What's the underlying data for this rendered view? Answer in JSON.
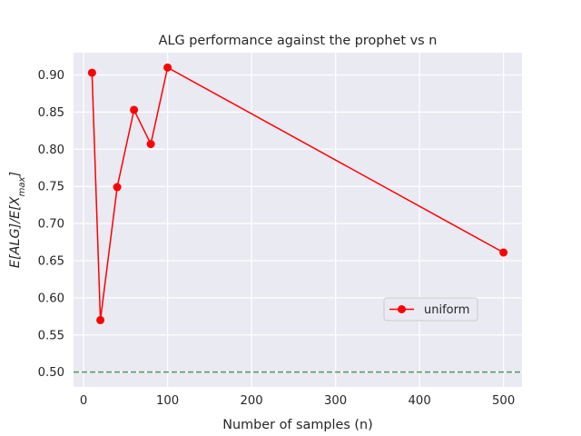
{
  "chart_data": {
    "type": "line",
    "title": "ALG performance against the prophet vs n",
    "xlabel": "Number of samples (n)",
    "ylabel": "E[ALG]/E[X_max]",
    "xlim": [
      -12,
      522
    ],
    "ylim": [
      0.48,
      0.93
    ],
    "xticks": [
      0,
      100,
      200,
      300,
      400,
      500
    ],
    "yticks": [
      0.5,
      0.55,
      0.6,
      0.65,
      0.7,
      0.75,
      0.8,
      0.85,
      0.9
    ],
    "grid": true,
    "legend_position": "center-right",
    "series": [
      {
        "name": "uniform",
        "color": "#ff0000",
        "marker": "circle",
        "x": [
          10,
          20,
          40,
          60,
          80,
          100,
          500
        ],
        "y": [
          0.903,
          0.57,
          0.749,
          0.853,
          0.807,
          0.91,
          0.661
        ]
      }
    ],
    "reference_line": {
      "y": 0.5,
      "style": "dashed",
      "color": "#4c9a5a"
    },
    "background": "#eaeaf2"
  }
}
